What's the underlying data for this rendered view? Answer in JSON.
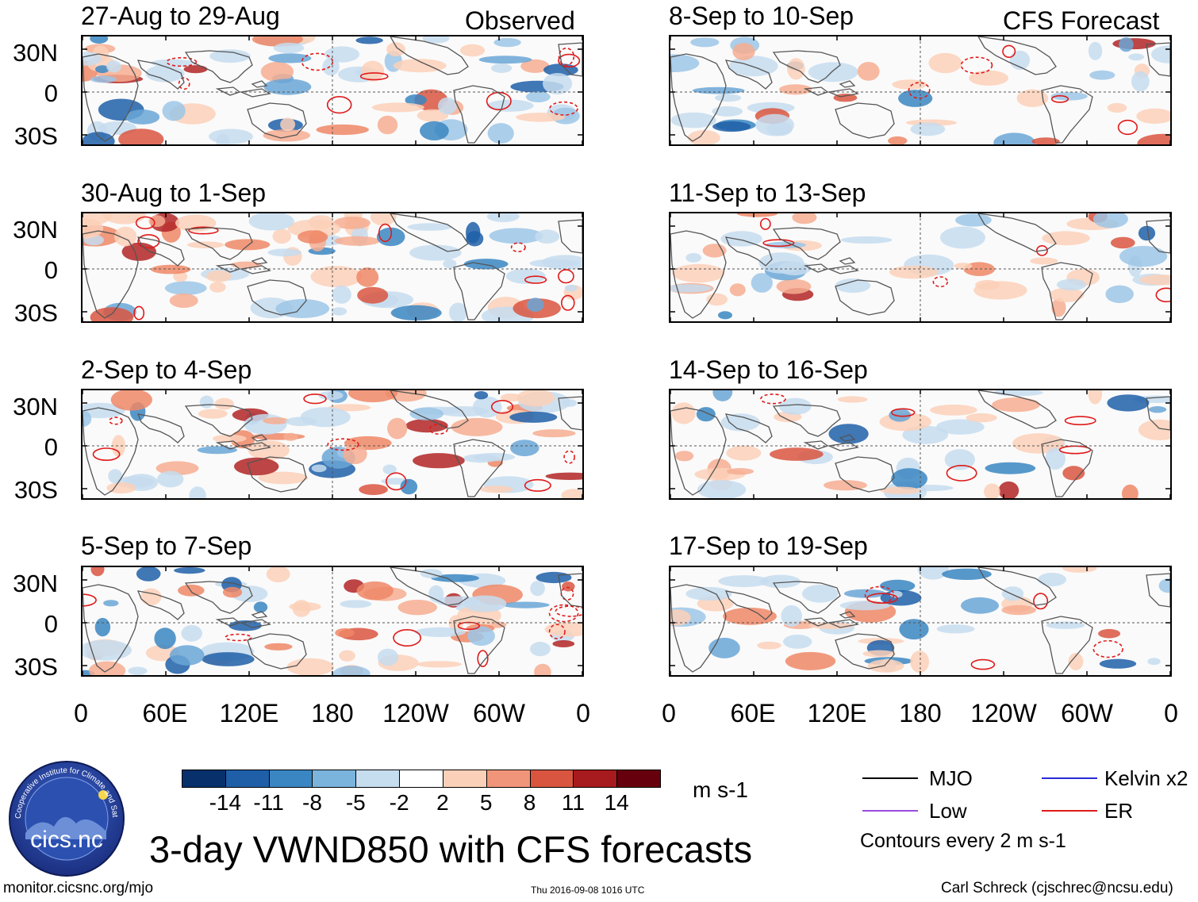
{
  "header": {
    "observed_label": "Observed",
    "forecast_label": "CFS Forecast"
  },
  "panels_observed": [
    {
      "title": "27-Aug to 29-Aug"
    },
    {
      "title": "30-Aug to 1-Sep"
    },
    {
      "title": "2-Sep to 4-Sep"
    },
    {
      "title": "5-Sep to 7-Sep"
    }
  ],
  "panels_forecast": [
    {
      "title": "8-Sep to 10-Sep"
    },
    {
      "title": "11-Sep to 13-Sep"
    },
    {
      "title": "14-Sep to 16-Sep"
    },
    {
      "title": "17-Sep to 19-Sep"
    }
  ],
  "y_axis_labels": [
    "30N",
    "0",
    "30S"
  ],
  "x_axis_labels": [
    "0",
    "60E",
    "120E",
    "180",
    "120W",
    "60W",
    "0"
  ],
  "colorbar": {
    "labels": [
      "-14",
      "-11",
      "-8",
      "-5",
      "-2",
      "2",
      "5",
      "8",
      "11",
      "14"
    ],
    "colors": [
      "#08306b",
      "#1f5fa8",
      "#3a86c2",
      "#7ab4dd",
      "#c6dcef",
      "#ffffff",
      "#fbd0b9",
      "#f1957a",
      "#d9553f",
      "#a71a1e",
      "#67000d"
    ],
    "units": "m s-1"
  },
  "legend": {
    "items": [
      {
        "label": "MJO",
        "color": "#000000"
      },
      {
        "label": "Kelvin x2",
        "color": "#2a2ad6"
      },
      {
        "label": "Low",
        "color": "#9b4be0"
      },
      {
        "label": "ER",
        "color": "#e01a1a"
      }
    ],
    "contour_note": "Contours every 2 m s-1"
  },
  "footer": {
    "title": "3-day VWND850 with CFS forecasts",
    "website": "monitor.cicsnc.org/mjo",
    "timestamp": "Thu 2016-09-08 1016 UTC",
    "author": "Carl Schreck (cjschrec@ncsu.edu)",
    "logo_text": "cics.nc",
    "logo_ring_text": "Cooperative Institute for Climate and Satellites"
  }
}
